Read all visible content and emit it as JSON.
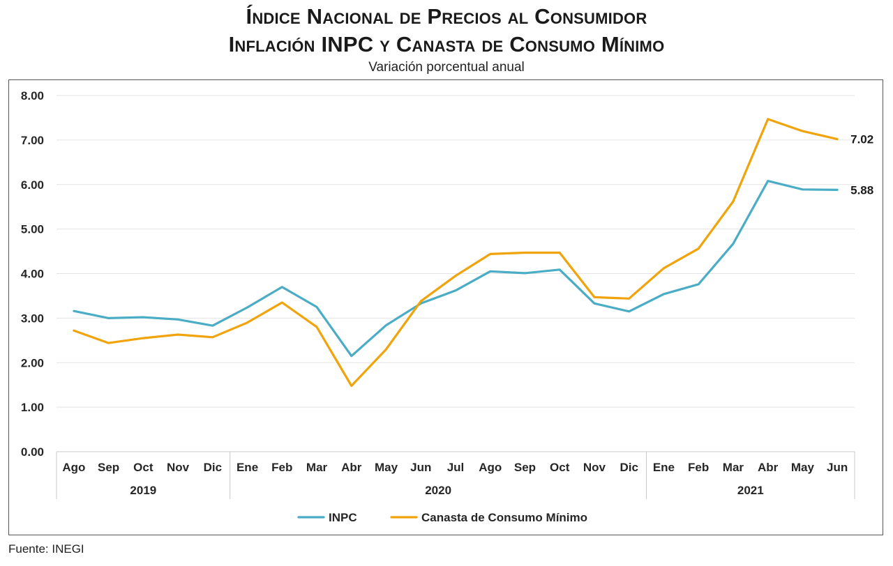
{
  "header": {
    "title_line1": "Índice Nacional de Precios al Consumidor",
    "title_line2": "Inflación INPC y Canasta de Consumo Mínimo",
    "subtitle": "Variación porcentual anual"
  },
  "footer": {
    "source": "Fuente: INEGI"
  },
  "chart_data": {
    "type": "line",
    "title": "Índice Nacional de Precios al Consumidor / Inflación INPC y Canasta de Consumo Mínimo",
    "subtitle": "Variación porcentual anual",
    "categories": [
      "Ago",
      "Sep",
      "Oct",
      "Nov",
      "Dic",
      "Ene",
      "Feb",
      "Mar",
      "Abr",
      "May",
      "Jun",
      "Jul",
      "Ago",
      "Sep",
      "Oct",
      "Nov",
      "Dic",
      "Ene",
      "Feb",
      "Mar",
      "Abr",
      "May",
      "Jun"
    ],
    "year_groups": [
      {
        "label": "2019",
        "count": 5
      },
      {
        "label": "2020",
        "count": 12
      },
      {
        "label": "2021",
        "count": 6
      }
    ],
    "ylim": [
      0,
      8
    ],
    "yticks": [
      "0.00",
      "1.00",
      "2.00",
      "3.00",
      "4.00",
      "5.00",
      "6.00",
      "7.00",
      "8.00"
    ],
    "grid": true,
    "legend_position": "bottom",
    "series": [
      {
        "name": "INPC",
        "color": "#4bacc6",
        "values": [
          3.16,
          3.0,
          3.02,
          2.97,
          2.83,
          3.24,
          3.7,
          3.25,
          2.15,
          2.84,
          3.33,
          3.62,
          4.05,
          4.01,
          4.09,
          3.33,
          3.15,
          3.54,
          3.76,
          4.67,
          6.08,
          5.89,
          5.88
        ],
        "end_label": "5.88"
      },
      {
        "name": "Canasta de Consumo Mínimo",
        "color": "#f0a30a",
        "values": [
          2.72,
          2.44,
          2.55,
          2.63,
          2.57,
          2.9,
          3.35,
          2.8,
          1.48,
          2.3,
          3.38,
          3.95,
          4.44,
          4.47,
          4.47,
          3.47,
          3.44,
          4.12,
          4.56,
          5.62,
          7.47,
          7.2,
          7.02
        ],
        "end_label": "7.02"
      }
    ]
  }
}
